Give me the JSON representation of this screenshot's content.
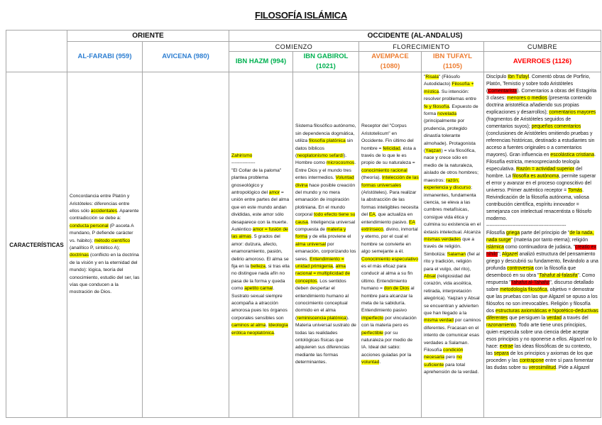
{
  "title": "FILOSOFÍA ISLÁMICA",
  "colors": {
    "oriente": "#2e7fd2",
    "comienzo": "#00b050",
    "florecimiento": "#ed7d31",
    "cumbre": "#ff0000",
    "highlight_yellow": "#ffff00",
    "highlight_red": "#ff0000"
  },
  "headers": {
    "oriente": "ORIENTE",
    "occidente": "OCCIDENTE (AL-ANDALUS)",
    "comienzo": "COMIENZO",
    "florecimiento": "FLORECIMIENTO",
    "cumbre": "CUMBRE",
    "farabi": "AL-FARABI (959)",
    "avicena": "AVICENA (980)",
    "hazm": "IBN HAZM (994)",
    "gabirol": "IBN GABIROL (1021)",
    "avempace": "AVEMPACE (1080)",
    "tufayl": "IBN TUFAYL (1105)",
    "averroes": "AVERROES (1126)"
  },
  "row_label": "CARACTERÍSTICAS",
  "cells": {
    "farabi": [
      [
        "Concordancia entre Platón y Aristóteles: diferencias entre ellos sólo "
      ],
      [
        "accidentales",
        "y"
      ],
      [
        ". Aparente contradicción se debe a: "
      ],
      [
        "conducta personal",
        "y"
      ],
      [
        " (P asceta A mundano, P defiende carácter vs. hábito); "
      ],
      [
        "método científico",
        "y"
      ],
      [
        " (analítico P, sintético A); "
      ],
      [
        "doctrinas",
        "y"
      ],
      [
        " (conflicto en la doctrina de la visión y en la eternidad del mundo): lógica, teoría del conocimiento, estudio del ser, las vías que conducen a la mostración de Dios."
      ]
    ],
    "avicena": [],
    "hazm": [
      [
        "Zahirismo",
        "y"
      ],
      [
        "\n---------------\n\"El Collar de la paloma\" plantea problema gnoseológico y antropológico del "
      ],
      [
        "amor",
        "y"
      ],
      [
        " = unión entre partes del alma que en este mundo andan divididas, este amor sólo desaparece con la muerte. Auténtico "
      ],
      [
        "amor = fusión de las almas",
        "y"
      ],
      [
        ". 5 grados del amor: dulzura, afecto, enamoramiento, pasión, delirio amoroso. El alma se fija en la "
      ],
      [
        "belleza",
        "y"
      ],
      [
        ", si tras ella no distingue nada afín no pasa de la forma y queda como "
      ],
      [
        "apetito carnal",
        "y"
      ],
      [
        ". Sustrato sexual siempre acompaña a atracción amorosa pues los órganos corporales sensibles son "
      ],
      [
        "caminos al alma",
        "y"
      ],
      [
        ". "
      ],
      [
        "Ideología erótica neoplatónica",
        "y"
      ],
      [
        "."
      ]
    ],
    "gabirol": [
      [
        "Sistema filosófico autónomo, sin dependencia dogmática, utiliza "
      ],
      [
        "filosofía platónica",
        "y"
      ],
      [
        " sin datos bíblicos ("
      ],
      [
        "neoplatonismo sefardí",
        "y"
      ],
      [
        "). Hombre como "
      ],
      [
        "microcosmos",
        "y"
      ],
      [
        ". Entre Dios y el mundo tres entes intermedios. "
      ],
      [
        "Voluntad divina",
        "y"
      ],
      [
        " hace posible creación del mundo y no mera emanación de inspiración plotiniana. En el mundo corporal "
      ],
      [
        "todo efecto tiene su causa",
        "y"
      ],
      [
        ". Inteligencia universal compuesta de "
      ],
      [
        "materia y forma",
        "y"
      ],
      [
        " y de ella proviene el "
      ],
      [
        "alma universal",
        "y"
      ],
      [
        " por emanación, corporizando los seres. "
      ],
      [
        "Entendimiento = unidad primigenia",
        "y"
      ],
      [
        ", "
      ],
      [
        "alma racional = multiplicidad de conceptos",
        "y"
      ],
      [
        ". Los sentidos deben despertar el entendimiento humano al conocimiento conceptual dormido en el alma ("
      ],
      [
        "reminiscencia platónica",
        "y"
      ],
      [
        "). Materia universal sustrato de todas las realidades ontológicas físicas que adquieren sus diferencias mediante las formas determinantes."
      ]
    ],
    "avempace": [
      [
        "Receptor del \"Corpus Aristotelicum\" en Occidente. Fin último del hombre = "
      ],
      [
        "felicidad",
        "y"
      ],
      [
        ", ésta a través de lo que le es propio de su naturaleza = "
      ],
      [
        "conocimiento racional",
        "y"
      ],
      [
        " (theoría). "
      ],
      [
        "Intelección de las formas universales",
        "y"
      ],
      [
        " (Aristóteles). Para realizar la abstracción de las formas inteligibles necesita del "
      ],
      [
        "EA",
        "y"
      ],
      [
        ", que actualiza en entendimiento pasivo. "
      ],
      [
        "EA extrínseco",
        "y"
      ],
      [
        ", divino, inmortal y eterno, por el cual el hombre se convierte en algo semejante a él. "
      ],
      [
        "Conocimiento especulativo",
        "y"
      ],
      [
        " es el más eficaz para conducir al alma a su fin último. Entendimiento humano = "
      ],
      [
        "don de Dios",
        "y"
      ],
      [
        " al hombre para alcanzar la meta de la sabiduría. Entendimiento pasivo "
      ],
      [
        "imperfecto",
        "y"
      ],
      [
        " por vinculación con la materia pero es "
      ],
      [
        "perfectible",
        "y"
      ],
      [
        " por su naturaleza por medio de IA. Ideal del sabio: acciones guiadas por la "
      ],
      [
        "voluntad",
        "y"
      ],
      [
        "."
      ]
    ],
    "tufayl": [
      [
        "\""
      ],
      [
        "Risala",
        "y"
      ],
      [
        "\" (Filósofo Autodidacto) "
      ],
      [
        "Filosofía + mística",
        "y"
      ],
      [
        ". Su intención: resolver problemas entre "
      ],
      [
        "fe y filosofía",
        "y"
      ],
      [
        ". Expuesto de forma "
      ],
      [
        "novelada",
        "y"
      ],
      [
        " (principalmente por prudencia, protegido dinastía tolerante almohade). Protagonista ("
      ],
      [
        "Yaqzan",
        "y"
      ],
      [
        ") = vía filosófica, nace y crece sólo en medio de la naturaleza, aislado de otros hombres; maestros: "
      ],
      [
        "razón, experiencia y discurso",
        "y"
      ],
      [
        "; inmanentes, fundamenta ciencia, se eleva a las cumbres metafísicas, consigue vida ética y culmina su existencia en el éxtasis intelectual. Alcanza "
      ],
      [
        "mismas verdades",
        "y"
      ],
      [
        " que a través de religión. Simboliza: "
      ],
      [
        "Salaman",
        "y"
      ],
      [
        " (fiel al rito y tradición, religión para el vulgo, del rito), "
      ],
      [
        "Absal",
        "y"
      ],
      [
        " (religiosidad del corazón, vida ascética, retirada, interpretación alegórica). Yaqzan y Absal se encuentran y advierten que han llegado a la "
      ],
      [
        "misma verdad",
        "y"
      ],
      [
        " por caminos diferentes. Fracasan en el intento de comunicar esas verdades a Salaman. Filosofía "
      ],
      [
        "condición necesaria",
        "y"
      ],
      [
        " pero "
      ],
      [
        "no suficiente",
        "y"
      ],
      [
        " para total aprehensión de la verdad."
      ]
    ],
    "averroes": [
      [
        "Discípulo "
      ],
      [
        "Ibn Tufayl",
        "y"
      ],
      [
        ". Comentó obras de Porfirio, Platón, Temistio y sobre todo Aristóteles ("
      ],
      [
        "Comentarista",
        "r"
      ],
      [
        "). Comentarios a obras del Estagirita 3 clases: "
      ],
      [
        "menores o medios",
        "y"
      ],
      [
        " (presenta contenido doctrina aristotélica añadiendo sus propias explicaciones y desarrollos); "
      ],
      [
        "comentarios mayores",
        "y"
      ],
      [
        " (fragmentos de Aristóteles seguidos de comentarios suyos); "
      ],
      [
        "pequeños comentarios",
        "y"
      ],
      [
        " (conclusiones de Aristóteles omitiendo pruebas y referencias históricas, destinado a estudiantes sin acceso a fuentes originales o a comentarios mayores). Gran influencia en "
      ],
      [
        "escolástica cristiana",
        "y"
      ],
      [
        ". Filosofía estricta, menospreciando teología especulativa. "
      ],
      [
        "Razón = actividad superior",
        "y"
      ],
      [
        " del hombre. La "
      ],
      [
        "filosofía es autónoma",
        "y"
      ],
      [
        ", permite superar el error y avanzar en el proceso cognoscitivo del universo. Primer auténtico receptor = "
      ],
      [
        "Tomás",
        "y"
      ],
      [
        ". Reivindicación de la filosofía autónoma, valiosa contribución científica, espíritu innovador = semejanza con intelectual renacentista o filósofo moderno.\n-------------------------------------------------\nFilosofía "
      ],
      [
        "griega",
        "y"
      ],
      [
        " parte del principio de \""
      ],
      [
        "de la nada, nada surge",
        "y"
      ],
      [
        "\" (materia por tanto eterna); religión "
      ],
      [
        "islámica",
        "y"
      ],
      [
        " como continuadora de judaica, \""
      ],
      [
        "creatio ex nihilo",
        "r"
      ],
      [
        "\"; "
      ],
      [
        "Algazel",
        "y"
      ],
      [
        " analizó estructura del pensamiento griego y descubrió su fundamento, llevándolo a una profunda "
      ],
      [
        "controversia",
        "y"
      ],
      [
        " con la filosofía que desembocó en su obra \""
      ],
      [
        "Tahafut al-falasifa",
        "y"
      ],
      [
        "\". Como respuesta \""
      ],
      [
        "Tahafut al-Tahafut",
        "r"
      ],
      [
        "\", discurso detallado sobre "
      ],
      [
        "metodología filosófica",
        "y"
      ],
      [
        ", objetivo = demostrar que las pruebas con las que Algazel se opuso a los filósofos no son irrevocables. Religión y filosofía dos "
      ],
      [
        "estructuras axiomáticas e hipotético-deductivas diferentes",
        "y"
      ],
      [
        " que persiguen la "
      ],
      [
        "verdad",
        "y"
      ],
      [
        " a través del "
      ],
      [
        "razonamiento",
        "y"
      ],
      [
        ". Todo arte tiene unos principios, quien especula sobre una ciencia debe aceptar esos principios y no oponerse a ellos. Algazel no lo hace: "
      ],
      [
        "extrae",
        "y"
      ],
      [
        " las ideas filosóficas de su contexto, las "
      ],
      [
        "separa",
        "y"
      ],
      [
        " de los principios y axiomas de los que proceden y las "
      ],
      [
        "contrapone",
        "y"
      ],
      [
        " entre sí para fomentar las dudas sobre su "
      ],
      [
        "verosimilitud",
        "y"
      ],
      [
        ". Pide a Algazel"
      ]
    ]
  }
}
